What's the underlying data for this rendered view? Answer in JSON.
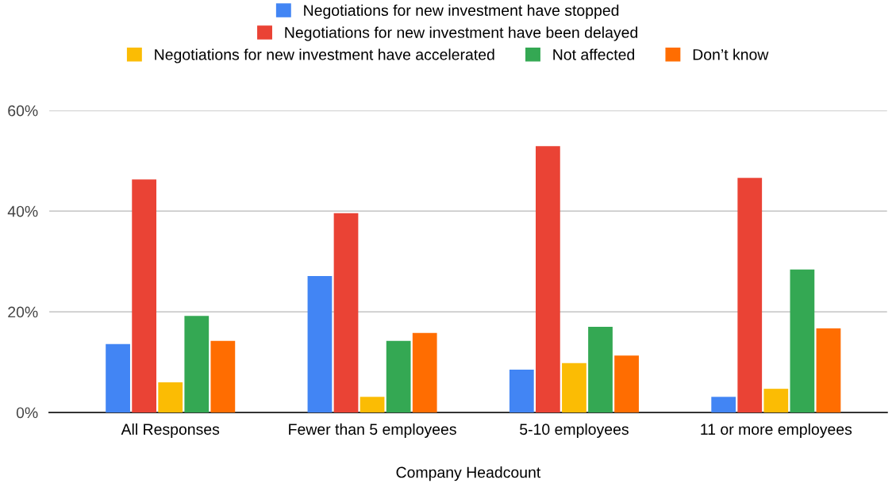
{
  "chart_data": {
    "type": "bar",
    "xlabel": "Company Headcount",
    "categories": [
      "All Responses",
      "Fewer than 5 employees",
      "5-10 employees",
      "11 or more employees"
    ],
    "series": [
      {
        "name": "Negotiations for new investment have stopped",
        "color": "#4285f4",
        "values": [
          13.6,
          27.1,
          8.5,
          3.1
        ]
      },
      {
        "name": "Negotiations for new investment have been delayed",
        "color": "#ea4335",
        "values": [
          46.3,
          39.6,
          52.9,
          46.6
        ]
      },
      {
        "name": "Negotiations for new investment have accelerated",
        "color": "#fbbc04",
        "values": [
          6.0,
          3.1,
          9.8,
          4.7
        ]
      },
      {
        "name": "Not affected",
        "color": "#34a853",
        "values": [
          19.2,
          14.2,
          17.0,
          28.4
        ]
      },
      {
        "name": "Don’t know",
        "color": "#ff6d01",
        "values": [
          14.2,
          15.8,
          11.3,
          16.7
        ]
      }
    ],
    "ylim": [
      0,
      60
    ],
    "yticks": [
      {
        "value": 0,
        "label": "0%"
      },
      {
        "value": 20,
        "label": "20%"
      },
      {
        "value": 40,
        "label": "40%"
      },
      {
        "value": 60,
        "label": "60%"
      }
    ],
    "grid": "y",
    "legend": "top"
  }
}
